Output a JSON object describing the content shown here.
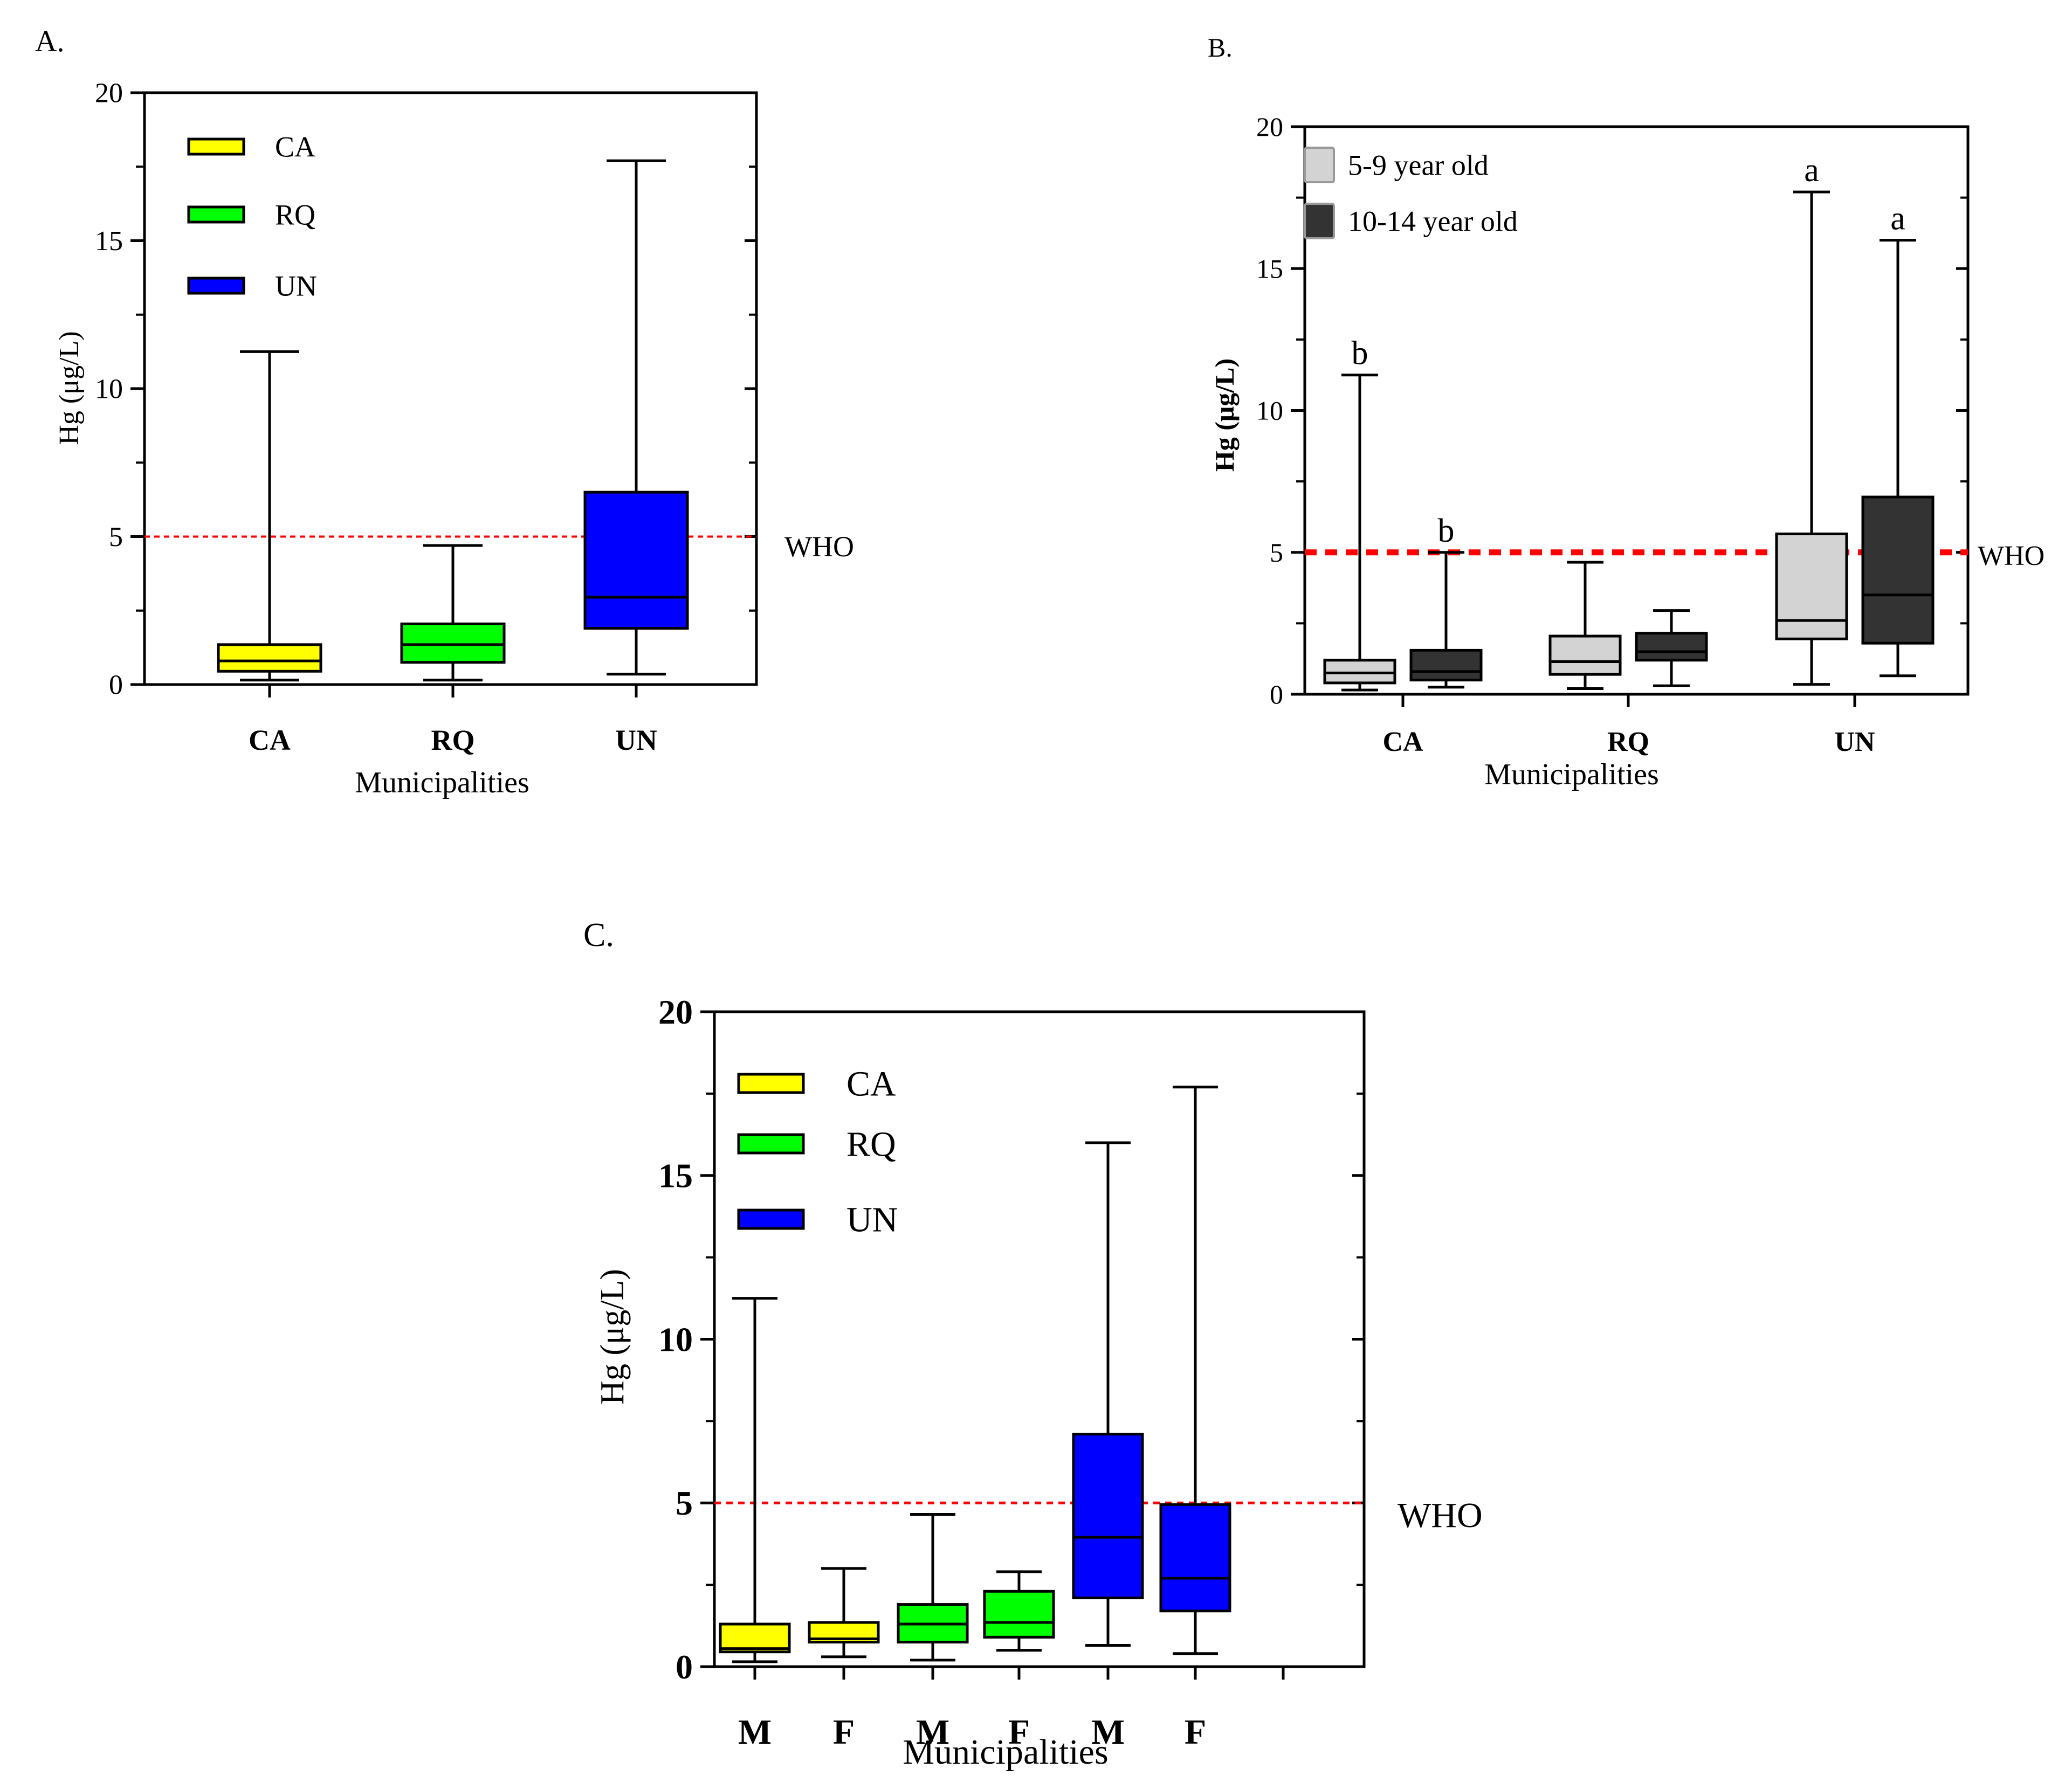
{
  "reference_line": {
    "label": "WHO",
    "value": 5,
    "color": "#ff0000"
  },
  "colors": {
    "CA": "#ffff00",
    "RQ": "#00ff00",
    "UN": "#0000ff",
    "age_5_9": "#d3d3d3",
    "age_10_14": "#333333"
  },
  "chart_data": [
    {
      "id": "A",
      "panel_label": "A.",
      "type": "boxplot",
      "title": "",
      "xlabel": "Municipalities",
      "ylabel": "Hg (μg/L)",
      "ylim": [
        0,
        20
      ],
      "yticks": [
        0,
        5,
        10,
        15,
        20
      ],
      "categories": [
        "CA",
        "RQ",
        "UN"
      ],
      "legend": [
        {
          "name": "CA",
          "color": "#ffff00"
        },
        {
          "name": "RQ",
          "color": "#00ff00"
        },
        {
          "name": "UN",
          "color": "#0000ff"
        }
      ],
      "legend_position": "top-left",
      "boxes": [
        {
          "category": "CA",
          "color": "#ffff00",
          "min": 0.15,
          "q1": 0.45,
          "median": 0.8,
          "q3": 1.35,
          "max": 11.25
        },
        {
          "category": "RQ",
          "color": "#00ff00",
          "min": 0.15,
          "q1": 0.75,
          "median": 1.35,
          "q3": 2.05,
          "max": 4.7
        },
        {
          "category": "UN",
          "color": "#0000ff",
          "min": 0.35,
          "q1": 1.9,
          "median": 2.95,
          "q3": 6.5,
          "max": 17.7
        }
      ]
    },
    {
      "id": "B",
      "panel_label": "B.",
      "type": "boxplot",
      "title": "",
      "xlabel": "Municipalities",
      "ylabel": "Hg (μg/L)",
      "ylim": [
        0,
        20
      ],
      "yticks": [
        0,
        5,
        10,
        15,
        20
      ],
      "categories": [
        "CA",
        "RQ",
        "UN"
      ],
      "legend": [
        {
          "name": "5-9 year old",
          "color": "#d3d3d3"
        },
        {
          "name": "10-14 year old",
          "color": "#333333"
        }
      ],
      "legend_position": "top-left",
      "boxes": [
        {
          "category": "CA",
          "group": "5-9 year old",
          "color": "#d3d3d3",
          "min": 0.15,
          "q1": 0.4,
          "median": 0.75,
          "q3": 1.2,
          "max": 11.25,
          "annotation": "b"
        },
        {
          "category": "CA",
          "group": "10-14 year old",
          "color": "#333333",
          "min": 0.25,
          "q1": 0.5,
          "median": 0.8,
          "q3": 1.55,
          "max": 5.0,
          "annotation": "b"
        },
        {
          "category": "RQ",
          "group": "5-9 year old",
          "color": "#d3d3d3",
          "min": 0.2,
          "q1": 0.7,
          "median": 1.15,
          "q3": 2.05,
          "max": 4.65,
          "annotation": ""
        },
        {
          "category": "RQ",
          "group": "10-14 year old",
          "color": "#333333",
          "min": 0.3,
          "q1": 1.2,
          "median": 1.5,
          "q3": 2.15,
          "max": 2.95,
          "annotation": ""
        },
        {
          "category": "UN",
          "group": "5-9 year old",
          "color": "#d3d3d3",
          "min": 0.35,
          "q1": 1.95,
          "median": 2.6,
          "q3": 5.65,
          "max": 17.7,
          "annotation": "a"
        },
        {
          "category": "UN",
          "group": "10-14 year old",
          "color": "#333333",
          "min": 0.65,
          "q1": 1.8,
          "median": 3.5,
          "q3": 6.95,
          "max": 16.0,
          "annotation": "a"
        }
      ]
    },
    {
      "id": "C",
      "panel_label": "C.",
      "type": "boxplot",
      "title": "",
      "xlabel": "Municipalities",
      "ylabel": "Hg (μg/L)",
      "ylim": [
        0,
        20
      ],
      "yticks": [
        0,
        5,
        10,
        15,
        20
      ],
      "categories": [
        "M",
        "F",
        "M",
        "F",
        "M",
        "F"
      ],
      "legend": [
        {
          "name": "CA",
          "color": "#ffff00"
        },
        {
          "name": "RQ",
          "color": "#00ff00"
        },
        {
          "name": "UN",
          "color": "#0000ff"
        }
      ],
      "legend_position": "top-left",
      "boxes": [
        {
          "category": "M",
          "municipality": "CA",
          "color": "#ffff00",
          "min": 0.15,
          "q1": 0.45,
          "median": 0.55,
          "q3": 1.3,
          "max": 11.25
        },
        {
          "category": "F",
          "municipality": "CA",
          "color": "#ffff00",
          "min": 0.3,
          "q1": 0.75,
          "median": 0.85,
          "q3": 1.35,
          "max": 3.0
        },
        {
          "category": "M",
          "municipality": "RQ",
          "color": "#00ff00",
          "min": 0.2,
          "q1": 0.75,
          "median": 1.3,
          "q3": 1.9,
          "max": 4.65
        },
        {
          "category": "F",
          "municipality": "RQ",
          "color": "#00ff00",
          "min": 0.5,
          "q1": 0.9,
          "median": 1.35,
          "q3": 2.3,
          "max": 2.9
        },
        {
          "category": "M",
          "municipality": "UN",
          "color": "#0000ff",
          "min": 0.65,
          "q1": 2.1,
          "median": 3.95,
          "q3": 7.1,
          "max": 16.0
        },
        {
          "category": "F",
          "municipality": "UN",
          "color": "#0000ff",
          "min": 0.4,
          "q1": 1.7,
          "median": 2.7,
          "q3": 4.95,
          "max": 17.7
        }
      ]
    }
  ]
}
